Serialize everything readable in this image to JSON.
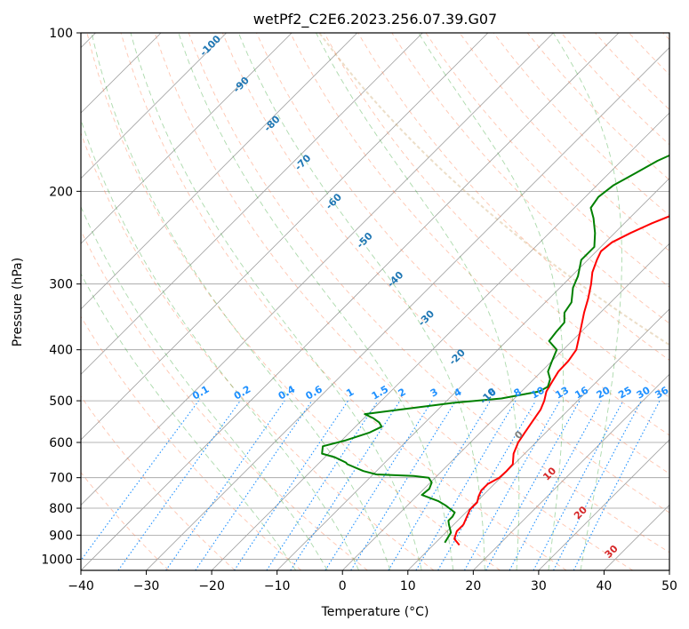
{
  "chart_data": {
    "type": "line",
    "title": "wetPf2_C2E6.2023.256.07.39.G07",
    "xlabel": "Temperature (°C)",
    "ylabel": "Pressure (hPa)",
    "xlim": [
      -40,
      50
    ],
    "ylim": [
      1050,
      100
    ],
    "x_ticks": [
      -40,
      -30,
      -20,
      -10,
      0,
      10,
      20,
      30,
      40,
      50
    ],
    "x_tick_labels": [
      "−40",
      "−30",
      "−20",
      "−10",
      "0",
      "10",
      "20",
      "30",
      "40",
      "50"
    ],
    "y_ticks": [
      100,
      200,
      300,
      400,
      500,
      600,
      700,
      800,
      900,
      1000
    ],
    "y_tick_labels": [
      "100",
      "200",
      "300",
      "400",
      "500",
      "600",
      "700",
      "800",
      "900",
      "1000"
    ],
    "skew_reference_deg": 45,
    "series": [
      {
        "name": "temperature",
        "color": "#ff0000",
        "points": [
          [
            14.0,
            940
          ],
          [
            12.3,
            915
          ],
          [
            11.5,
            885
          ],
          [
            11.5,
            860
          ],
          [
            10.8,
            830
          ],
          [
            10.2,
            805
          ],
          [
            10.2,
            780
          ],
          [
            9.5,
            760
          ],
          [
            9.0,
            740
          ],
          [
            9.0,
            720
          ],
          [
            9.8,
            700
          ],
          [
            9.9,
            680
          ],
          [
            9.8,
            660
          ],
          [
            8.3,
            630
          ],
          [
            7.3,
            600
          ],
          [
            6.8,
            575
          ],
          [
            6.2,
            545
          ],
          [
            5.7,
            520
          ],
          [
            4.9,
            500
          ],
          [
            3.8,
            480
          ],
          [
            3.2,
            460
          ],
          [
            2.6,
            440
          ],
          [
            2.5,
            420
          ],
          [
            2.0,
            400
          ],
          [
            0.6,
            380
          ],
          [
            -0.9,
            360
          ],
          [
            -2.5,
            340
          ],
          [
            -4.0,
            320
          ],
          [
            -5.8,
            300
          ],
          [
            -7.4,
            285
          ],
          [
            -8.6,
            270
          ],
          [
            -9.3,
            260
          ],
          [
            -9.0,
            250
          ],
          [
            -7.6,
            240
          ],
          [
            -5.8,
            230
          ],
          [
            -3.5,
            220
          ],
          [
            -1.6,
            210
          ],
          [
            0.1,
            200
          ],
          [
            1.4,
            190
          ],
          [
            2.8,
            180
          ],
          [
            4.1,
            170
          ],
          [
            5.4,
            160
          ],
          [
            7.1,
            150
          ],
          [
            8.8,
            140
          ],
          [
            11.5,
            130
          ],
          [
            15.0,
            120
          ],
          [
            18.3,
            110
          ],
          [
            21.0,
            100
          ]
        ]
      },
      {
        "name": "dewpoint",
        "color": "#008000",
        "points": [
          [
            11.4,
            930
          ],
          [
            11.1,
            910
          ],
          [
            10.8,
            890
          ],
          [
            9.3,
            860
          ],
          [
            8.6,
            845
          ],
          [
            8.6,
            830
          ],
          [
            8.3,
            815
          ],
          [
            5.8,
            790
          ],
          [
            4.0,
            775
          ],
          [
            0.6,
            755
          ],
          [
            0.8,
            735
          ],
          [
            0.2,
            715
          ],
          [
            -1.0,
            700
          ],
          [
            -3.5,
            695
          ],
          [
            -9.5,
            690
          ],
          [
            -12.0,
            680
          ],
          [
            -15.5,
            660
          ],
          [
            -16.0,
            655
          ],
          [
            -18.5,
            640
          ],
          [
            -21.0,
            630
          ],
          [
            -22.0,
            610
          ],
          [
            -19.5,
            595
          ],
          [
            -17.0,
            575
          ],
          [
            -16.0,
            560
          ],
          [
            -17.0,
            550
          ],
          [
            -18.5,
            540
          ],
          [
            -20.5,
            530
          ],
          [
            -16.0,
            520
          ],
          [
            -9.0,
            505
          ],
          [
            -2.0,
            495
          ],
          [
            2.7,
            480
          ],
          [
            3.3,
            470
          ],
          [
            2.5,
            455
          ],
          [
            1.0,
            440
          ],
          [
            0.0,
            420
          ],
          [
            -1.0,
            400
          ],
          [
            -3.5,
            385
          ],
          [
            -3.8,
            370
          ],
          [
            -4.0,
            355
          ],
          [
            -5.5,
            340
          ],
          [
            -6.0,
            325
          ],
          [
            -8.0,
            305
          ],
          [
            -9.0,
            290
          ],
          [
            -11.0,
            270
          ],
          [
            -11.0,
            255
          ],
          [
            -13.0,
            240
          ],
          [
            -15.5,
            225
          ],
          [
            -17.5,
            215
          ],
          [
            -18.0,
            205
          ],
          [
            -17.5,
            195
          ],
          [
            -16.0,
            185
          ],
          [
            -14.5,
            175
          ],
          [
            -12.0,
            165
          ],
          [
            -9.8,
            150
          ],
          [
            -8.2,
            140
          ],
          [
            -6.2,
            130
          ],
          [
            -4.0,
            120
          ],
          [
            -2.6,
            110
          ],
          [
            -1.0,
            100
          ]
        ]
      }
    ],
    "dry_adiabat_labels": [
      "-100",
      "-90",
      "-80",
      "-70",
      "-60",
      "-50",
      "-40",
      "-30",
      "-20",
      "-10",
      "0",
      "10",
      "20",
      "30",
      "40"
    ],
    "mixing_ratio_labels": [
      "0.1",
      "0.2",
      "0.4",
      "0.6",
      "1",
      "1.5",
      "2",
      "3",
      "4",
      "6",
      "8",
      "10",
      "13",
      "16",
      "20",
      "25",
      "30",
      "36"
    ],
    "colors": {
      "isotherm": "#9e9e9e",
      "isobar": "#9e9e9e",
      "dry_adiabat": "#ff7f50",
      "moist_adiabat": "#2ca02c",
      "mixing_ratio": "#1e90ff",
      "adiab_label_cold": "#1f77b4",
      "adiab_label_zero": "#7f7f7f",
      "adiab_label_warm": "#d62728",
      "mix_label": "#1e90ff",
      "theta_e_far": "#c8a060"
    }
  }
}
